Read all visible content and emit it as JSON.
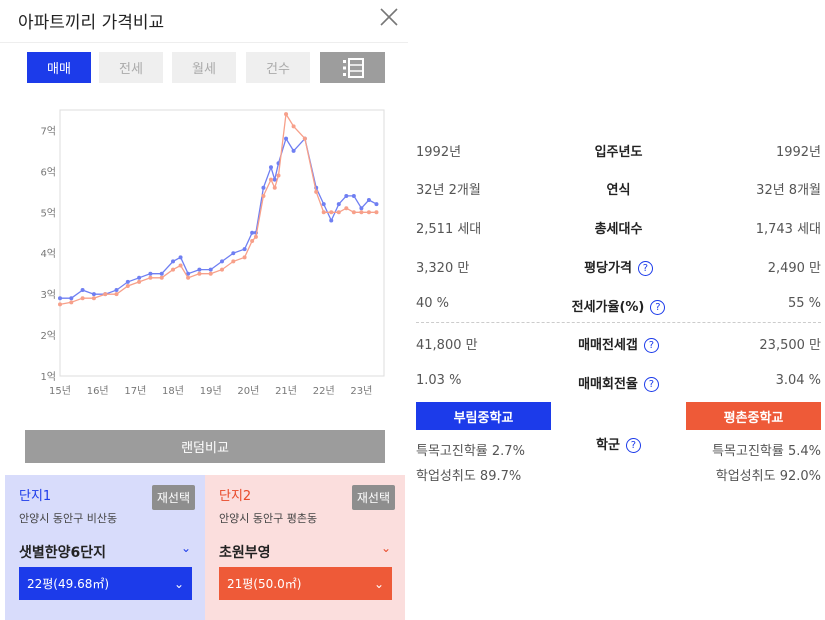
{
  "header": {
    "title": "아파트끼리 가격비교"
  },
  "tabs": [
    {
      "label": "매매",
      "active": true
    },
    {
      "label": "전세",
      "active": false
    },
    {
      "label": "월세",
      "active": false
    },
    {
      "label": "건수",
      "active": false
    }
  ],
  "list_icon": "list-view-icon",
  "chart_data": {
    "type": "line",
    "y_tick_labels": [
      "7억",
      "6억",
      "5억",
      "4억",
      "3억",
      "2억",
      "1억"
    ],
    "x_tick_labels": [
      "15년",
      "16년",
      "17년",
      "18년",
      "19년",
      "20년",
      "21년",
      "22년",
      "23년"
    ],
    "xlim": [
      2015,
      2023.6
    ],
    "ylim": [
      1,
      7.5
    ],
    "y_unit": "억",
    "grid": false,
    "series": [
      {
        "color": "#6f7ff2",
        "x": [
          2015.0,
          2015.3,
          2015.6,
          2015.9,
          2016.2,
          2016.5,
          2016.8,
          2017.1,
          2017.4,
          2017.7,
          2018.0,
          2018.2,
          2018.4,
          2018.7,
          2019.0,
          2019.3,
          2019.6,
          2019.9,
          2020.1,
          2020.2,
          2020.4,
          2020.6,
          2020.7,
          2020.8,
          2021.0,
          2021.2,
          2021.5,
          2021.8,
          2022.0,
          2022.2,
          2022.4,
          2022.6,
          2022.8,
          2023.0,
          2023.2,
          2023.4
        ],
        "y": [
          2.9,
          2.9,
          3.1,
          3.0,
          3.0,
          3.1,
          3.3,
          3.4,
          3.5,
          3.5,
          3.8,
          3.9,
          3.5,
          3.6,
          3.6,
          3.8,
          4.0,
          4.1,
          4.5,
          4.5,
          5.6,
          6.1,
          5.8,
          6.2,
          6.8,
          6.5,
          6.8,
          5.6,
          5.2,
          4.8,
          5.2,
          5.4,
          5.4,
          5.1,
          5.3,
          5.2
        ]
      },
      {
        "color": "#f7a08a",
        "x": [
          2015.0,
          2015.3,
          2015.6,
          2015.9,
          2016.2,
          2016.5,
          2016.8,
          2017.1,
          2017.4,
          2017.7,
          2018.0,
          2018.2,
          2018.4,
          2018.7,
          2019.0,
          2019.3,
          2019.6,
          2019.9,
          2020.1,
          2020.2,
          2020.4,
          2020.6,
          2020.7,
          2020.8,
          2021.0,
          2021.2,
          2021.5,
          2021.8,
          2022.0,
          2022.2,
          2022.4,
          2022.6,
          2022.8,
          2023.0,
          2023.2,
          2023.4
        ],
        "y": [
          2.75,
          2.8,
          2.9,
          2.9,
          3.0,
          3.0,
          3.2,
          3.3,
          3.4,
          3.4,
          3.6,
          3.7,
          3.4,
          3.5,
          3.5,
          3.6,
          3.8,
          3.9,
          4.3,
          4.4,
          5.4,
          5.8,
          5.6,
          5.9,
          7.4,
          7.1,
          6.8,
          5.5,
          5.0,
          5.0,
          5.0,
          5.1,
          5.0,
          5.0,
          5.0,
          5.0
        ]
      }
    ]
  },
  "compare_button": "랜덤비교",
  "panel1": {
    "tag": "단지1",
    "address": "안양시 동안구 비산동",
    "name": "샛별한양6단지",
    "size": "22평(49.68㎡)",
    "reselect": "재선택"
  },
  "panel2": {
    "tag": "단지2",
    "address": "안양시 동안구 평촌동",
    "name": "초원부영",
    "size": "21평(50.0㎡)",
    "reselect": "재선택"
  },
  "rows": [
    {
      "left": "1992년",
      "label": "입주년도",
      "right": "1992년"
    },
    {
      "left": "32년 2개월",
      "label": "연식",
      "right": "32년 8개월"
    },
    {
      "left": "2,511 세대",
      "label": "총세대수",
      "right": "1,743 세대"
    },
    {
      "left": "3,320 만",
      "label": "평당가격",
      "right": "2,490 만"
    },
    {
      "left": "40 %",
      "label": "전세가율(%)",
      "right": "55 %"
    },
    {
      "left": "41,800 만",
      "label": "매매전세갭",
      "right": "23,500 만"
    },
    {
      "left": "1.03 %",
      "label": "매매회전율",
      "right": "3.04 %"
    }
  ],
  "school": {
    "label": "학군",
    "left_name": "부림중학교",
    "right_name": "평촌중학교",
    "left_rate": "특목고진학률 2.7%",
    "left_score": "학업성취도 89.7%",
    "right_rate": "특목고진학률 5.4%",
    "right_score": "학업성취도 92.0%"
  }
}
